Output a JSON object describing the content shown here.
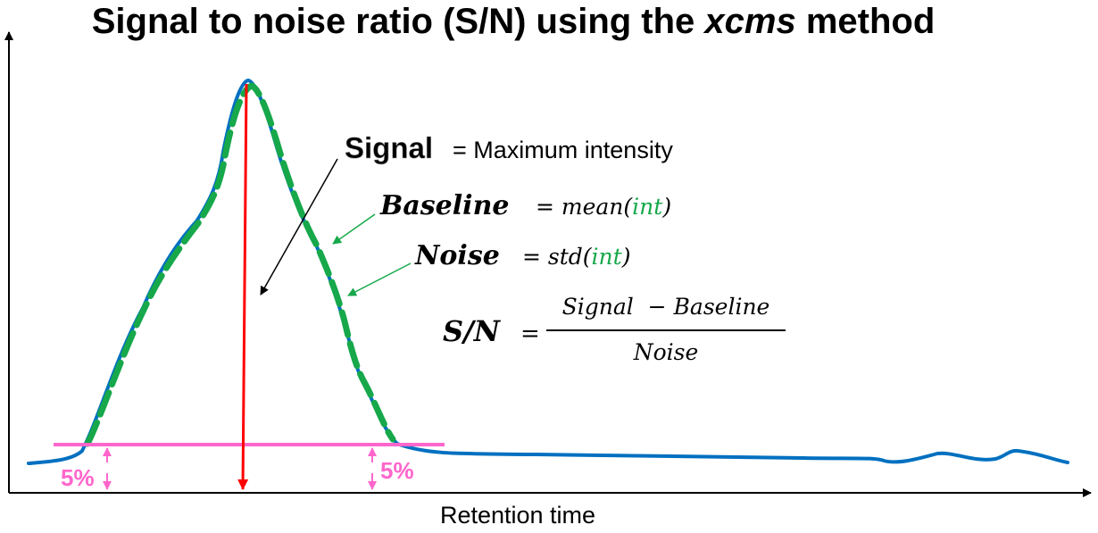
{
  "title": {
    "prefix": "Signal to noise ratio (S/N) using the ",
    "emphasis": "xcms",
    "suffix": " method"
  },
  "axes": {
    "xlabel": "Retention time"
  },
  "annotations": {
    "signal_term": "Signal",
    "signal_definition": "= Maximum intensity",
    "baseline_term": "Baseline",
    "baseline_eq": "= mean(",
    "baseline_arg": "int",
    "baseline_close": ")",
    "noise_term": "Noise",
    "noise_eq": "= std(",
    "noise_arg": "int",
    "noise_close": ")",
    "sn_term": "S/N",
    "sn_eq": "=",
    "sn_numerator": "Signal  − Baseline",
    "sn_denominator": "Noise",
    "threshold_left": "5%",
    "threshold_right": "5%"
  },
  "colors": {
    "signal_curve": "#0070C0",
    "fit_curve": "#16A84A",
    "signal_arrow": "#FF0000",
    "threshold_line": "#FF66CC",
    "threshold_label": "#FF66CC",
    "green_text": "#16A84A",
    "axis": "#000000"
  }
}
